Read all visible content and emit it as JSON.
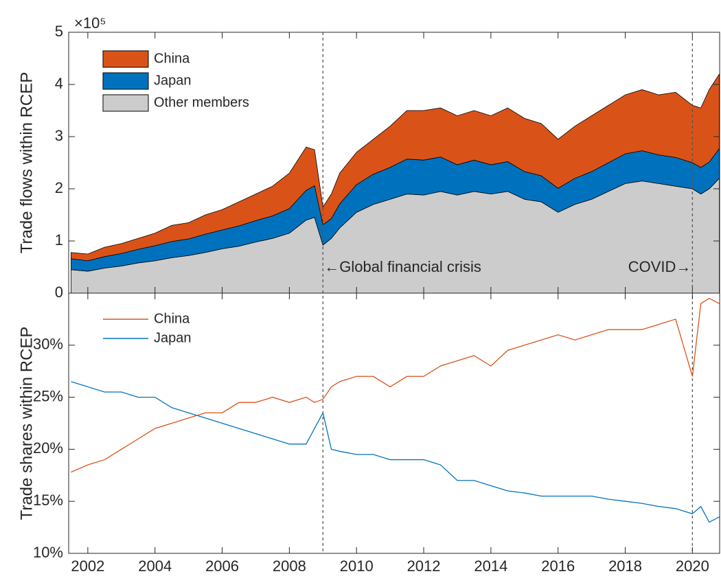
{
  "chart_data": [
    {
      "type": "area",
      "ylabel": "Trade flows within RCEP",
      "y_exponent_label": "×10⁵",
      "x": [
        2001.5,
        2002.0,
        2002.5,
        2003.0,
        2003.5,
        2004.0,
        2004.5,
        2005.0,
        2005.5,
        2006.0,
        2006.5,
        2007.0,
        2007.5,
        2008.0,
        2008.5,
        2008.75,
        2009.0,
        2009.25,
        2009.5,
        2010.0,
        2010.5,
        2011.0,
        2011.5,
        2012.0,
        2012.5,
        2013.0,
        2013.5,
        2014.0,
        2014.5,
        2015.0,
        2015.5,
        2016.0,
        2016.5,
        2017.0,
        2017.5,
        2018.0,
        2018.5,
        2019.0,
        2019.5,
        2020.0,
        2020.25,
        2020.5,
        2020.8
      ],
      "series": [
        {
          "name": "Other members",
          "color": "#cccccc",
          "values": [
            0.45,
            0.42,
            0.48,
            0.52,
            0.58,
            0.62,
            0.68,
            0.72,
            0.78,
            0.85,
            0.9,
            0.98,
            1.05,
            1.15,
            1.4,
            1.45,
            0.92,
            1.05,
            1.25,
            1.55,
            1.7,
            1.8,
            1.9,
            1.88,
            1.95,
            1.88,
            1.95,
            1.9,
            1.95,
            1.8,
            1.75,
            1.55,
            1.7,
            1.8,
            1.95,
            2.1,
            2.15,
            2.1,
            2.05,
            2.0,
            1.9,
            2.0,
            2.2
          ]
        },
        {
          "name": "Japan",
          "color": "#0072bd",
          "values": [
            0.21,
            0.2,
            0.22,
            0.24,
            0.26,
            0.29,
            0.31,
            0.32,
            0.35,
            0.36,
            0.39,
            0.41,
            0.43,
            0.47,
            0.57,
            0.61,
            0.39,
            0.38,
            0.46,
            0.53,
            0.58,
            0.61,
            0.67,
            0.67,
            0.66,
            0.58,
            0.6,
            0.56,
            0.57,
            0.53,
            0.5,
            0.46,
            0.5,
            0.53,
            0.55,
            0.57,
            0.58,
            0.55,
            0.55,
            0.5,
            0.51,
            0.51,
            0.57
          ]
        },
        {
          "name": "China",
          "color": "#d95319",
          "values": [
            0.12,
            0.13,
            0.18,
            0.19,
            0.21,
            0.24,
            0.31,
            0.31,
            0.37,
            0.39,
            0.46,
            0.51,
            0.57,
            0.68,
            0.83,
            0.69,
            0.34,
            0.47,
            0.59,
            0.62,
            0.67,
            0.79,
            0.93,
            0.95,
            0.94,
            0.94,
            0.95,
            0.94,
            1.03,
            1.02,
            1.0,
            0.94,
            1.0,
            1.07,
            1.1,
            1.13,
            1.17,
            1.15,
            1.25,
            1.1,
            1.14,
            1.39,
            1.43
          ]
        }
      ],
      "xlim": [
        2001.43,
        2020.81
      ],
      "xticks": [
        2002,
        2004,
        2006,
        2008,
        2010,
        2012,
        2014,
        2016,
        2018,
        2020
      ],
      "ylim": [
        0,
        5
      ],
      "yticks": [
        0,
        1,
        2,
        3,
        4,
        5
      ],
      "legend": "upper left",
      "annotations": [
        {
          "text": "←Global financial crisis",
          "x": 2009
        },
        {
          "text": "COVID→",
          "x": 2020
        }
      ]
    },
    {
      "type": "line",
      "ylabel": "Trade shares within RCEP",
      "x": [
        2001.5,
        2002.0,
        2002.5,
        2003.0,
        2003.5,
        2004.0,
        2004.5,
        2005.0,
        2005.5,
        2006.0,
        2006.5,
        2007.0,
        2007.5,
        2008.0,
        2008.5,
        2008.75,
        2009.0,
        2009.25,
        2009.5,
        2010.0,
        2010.5,
        2011.0,
        2011.5,
        2012.0,
        2012.5,
        2013.0,
        2013.5,
        2014.0,
        2014.5,
        2015.0,
        2015.5,
        2016.0,
        2016.5,
        2017.0,
        2017.5,
        2018.0,
        2018.5,
        2019.0,
        2019.5,
        2020.0,
        2020.25,
        2020.5,
        2020.8
      ],
      "series": [
        {
          "name": "Japan",
          "color": "#0072bd",
          "values": [
            26.5,
            26,
            25.5,
            25.5,
            25,
            25,
            24,
            23.5,
            23,
            22.5,
            22,
            21.5,
            21,
            20.5,
            20.5,
            22,
            23.5,
            20,
            19.8,
            19.5,
            19.5,
            19,
            19,
            19,
            18.5,
            17,
            17,
            16.5,
            16,
            15.8,
            15.5,
            15.5,
            15.5,
            15.5,
            15.2,
            15,
            14.8,
            14.5,
            14.3,
            13.8,
            14.5,
            13,
            13.5
          ]
        },
        {
          "name": "China",
          "color": "#d95319",
          "values": [
            17.8,
            18.5,
            19,
            20,
            21,
            22,
            22.5,
            23,
            23.5,
            23.5,
            24.5,
            24.5,
            25,
            24.5,
            25,
            24.5,
            24.8,
            26,
            26.5,
            27,
            27,
            26,
            27,
            27,
            28,
            28.5,
            29,
            28,
            29.5,
            30,
            30.5,
            31,
            30.5,
            31,
            31.5,
            31.5,
            31.5,
            32,
            32.5,
            27,
            34,
            34.5,
            34
          ]
        }
      ],
      "xlim": [
        2001.43,
        2020.81
      ],
      "xticks": [
        2002,
        2004,
        2006,
        2008,
        2010,
        2012,
        2014,
        2016,
        2018,
        2020
      ],
      "ylim": [
        10,
        35
      ],
      "yticks": [
        {
          "value": 10,
          "label": "10%"
        },
        {
          "value": 15,
          "label": "15%"
        },
        {
          "value": 20,
          "label": "20%"
        },
        {
          "value": 25,
          "label": "25%"
        },
        {
          "value": 30,
          "label": "30%"
        }
      ],
      "legend": "upper left"
    }
  ]
}
